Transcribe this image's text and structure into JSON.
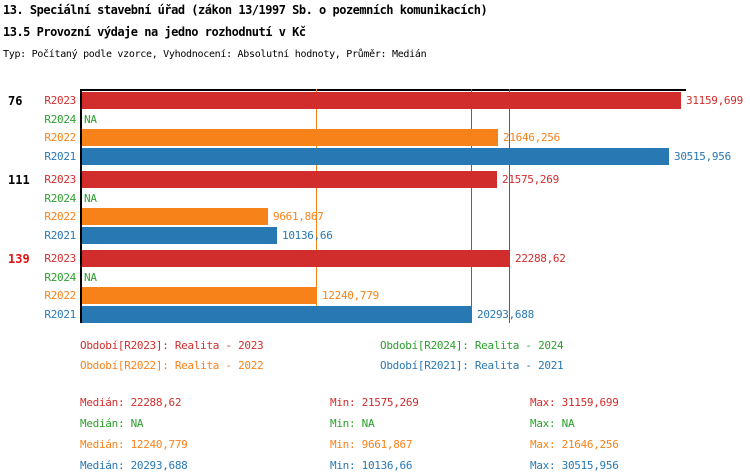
{
  "header": {
    "title1": "13. Speciální stavební úřad (zákon 13/1997 Sb. o pozemních komunikacích)",
    "title2": "13.5 Provozní výdaje na jedno rozhodnutí v Kč",
    "subtitle": "Typ: Počítaný podle vzorce, Vyhodnocení: Absolutní hodnoty, Průměr: Medián"
  },
  "colors": {
    "R2023": "#d22d2d",
    "R2024": "#2ca02c",
    "R2022": "#f8821a",
    "R2021": "#2878b4",
    "highlight_id": "#dd1111",
    "axis": "#000000"
  },
  "chart_data": {
    "type": "bar",
    "orientation": "horizontal",
    "unit": "Kč",
    "xlim": [
      0,
      31160
    ],
    "grid": false,
    "series_order": [
      "R2023",
      "R2024",
      "R2022",
      "R2021"
    ],
    "groups": [
      {
        "id": "76",
        "highlighted": false,
        "rows": [
          {
            "series": "R2023",
            "value": 31159.699,
            "display": "31159,699"
          },
          {
            "series": "R2024",
            "value": null,
            "display": "NA"
          },
          {
            "series": "R2022",
            "value": 21646.256,
            "display": "21646,256"
          },
          {
            "series": "R2021",
            "value": 30515.956,
            "display": "30515,956"
          }
        ]
      },
      {
        "id": "111",
        "highlighted": false,
        "rows": [
          {
            "series": "R2023",
            "value": 21575.269,
            "display": "21575,269"
          },
          {
            "series": "R2024",
            "value": null,
            "display": "NA"
          },
          {
            "series": "R2022",
            "value": 9661.867,
            "display": "9661,867"
          },
          {
            "series": "R2021",
            "value": 10136.66,
            "display": "10136,66"
          }
        ]
      },
      {
        "id": "139",
        "highlighted": true,
        "rows": [
          {
            "series": "R2023",
            "value": 22288.62,
            "display": "22288,62"
          },
          {
            "series": "R2024",
            "value": null,
            "display": "NA"
          },
          {
            "series": "R2022",
            "value": 12240.779,
            "display": "12240,779"
          },
          {
            "series": "R2021",
            "value": 20293.688,
            "display": "20293,688"
          }
        ]
      }
    ],
    "median_lines": [
      {
        "series": "R2022",
        "value": 12240.779
      },
      {
        "series": "R2021",
        "value": 20293.688
      },
      {
        "series": "R2023",
        "value": 22288.62
      }
    ]
  },
  "legend": [
    {
      "series": "R2023",
      "label": "Období[R2023]: Realita - 2023"
    },
    {
      "series": "R2024",
      "label": "Období[R2024]: Realita - 2024"
    },
    {
      "series": "R2022",
      "label": "Období[R2022]: Realita - 2022"
    },
    {
      "series": "R2021",
      "label": "Období[R2021]: Realita - 2021"
    }
  ],
  "stats_labels": {
    "median": "Medián",
    "min": "Min",
    "max": "Max"
  },
  "stats": [
    {
      "series": "R2023",
      "median": "22288,62",
      "min": "21575,269",
      "max": "31159,699"
    },
    {
      "series": "R2024",
      "median": "NA",
      "min": "NA",
      "max": "NA"
    },
    {
      "series": "R2022",
      "median": "12240,779",
      "min": "9661,867",
      "max": "21646,256"
    },
    {
      "series": "R2021",
      "median": "20293,688",
      "min": "10136,66",
      "max": "30515,956"
    }
  ]
}
